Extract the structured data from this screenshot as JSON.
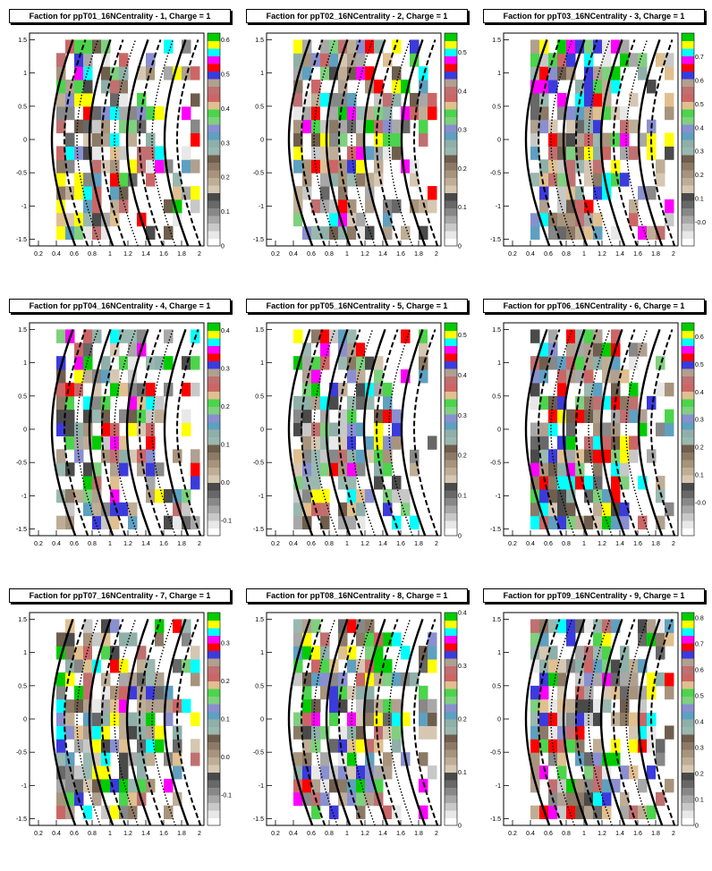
{
  "chart_data": [
    {
      "type": "heatmap",
      "title": "Faction for ppT01_16NCentrality - 1, Charge =    1",
      "xticks": [
        "0.2",
        "0.4",
        "0.6",
        "0.8",
        "1",
        "1.2",
        "1.4",
        "1.6",
        "1.8",
        "2"
      ],
      "yticks": [
        "1.5",
        "1",
        "0.5",
        "0",
        "-0.5",
        "-1",
        "-1.5"
      ],
      "zticks": [
        "0",
        "0.1",
        "0.2",
        "0.3",
        "0.4",
        "0.5",
        "0.6"
      ],
      "xlim": [
        0.1,
        2.05
      ],
      "ylim": [
        -1.6,
        1.6
      ],
      "zlim": [
        0,
        0.62
      ]
    },
    {
      "type": "heatmap",
      "title": "Faction for ppT02_16NCentrality - 2, Charge =    1",
      "xticks": [
        "0.2",
        "0.4",
        "0.6",
        "0.8",
        "1",
        "1.2",
        "1.4",
        "1.6",
        "1.8",
        "2"
      ],
      "yticks": [
        "1.5",
        "1",
        "0.5",
        "0",
        "-0.5",
        "-1",
        "-1.5"
      ],
      "zticks": [
        "0",
        "0.1",
        "0.2",
        "0.3",
        "0.4",
        "0.5"
      ],
      "xlim": [
        0.1,
        2.05
      ],
      "ylim": [
        -1.6,
        1.6
      ],
      "zlim": [
        0,
        0.55
      ]
    },
    {
      "type": "heatmap",
      "title": "Faction for ppT03_16NCentrality - 3, Charge =    1",
      "xticks": [
        "0.2",
        "0.4",
        "0.6",
        "0.8",
        "1",
        "1.2",
        "1.4",
        "1.6",
        "1.8",
        "2"
      ],
      "yticks": [
        "1.5",
        "1",
        "0.5",
        "0",
        "-0.5",
        "-1",
        "-1.5"
      ],
      "zticks": [
        "-0.0",
        "0.1",
        "0.2",
        "0.3",
        "0.4",
        "0.5",
        "0.6",
        "0.7"
      ],
      "xlim": [
        0.1,
        2.05
      ],
      "ylim": [
        -1.6,
        1.6
      ],
      "zlim": [
        -0.1,
        0.8
      ]
    },
    {
      "type": "heatmap",
      "title": "Faction for ppT04_16NCentrality - 4, Charge =    1",
      "xticks": [
        "0.2",
        "0.4",
        "0.6",
        "0.8",
        "1",
        "1.2",
        "1.4",
        "1.6",
        "1.8",
        "2"
      ],
      "yticks": [
        "1.5",
        "1",
        "0.5",
        "0",
        "-0.5",
        "-1",
        "-1.5"
      ],
      "zticks": [
        "-0.1",
        "0.0",
        "0.1",
        "0.2",
        "0.3",
        "0.4"
      ],
      "xlim": [
        0.1,
        2.05
      ],
      "ylim": [
        -1.6,
        1.6
      ],
      "zlim": [
        -0.14,
        0.42
      ]
    },
    {
      "type": "heatmap",
      "title": "Faction for ppT05_16NCentrality - 5, Charge =    1",
      "xticks": [
        "0.2",
        "0.4",
        "0.6",
        "0.8",
        "1",
        "1.2",
        "1.4",
        "1.6",
        "1.8",
        "2"
      ],
      "yticks": [
        "1.5",
        "1",
        "0.5",
        "0",
        "-0.5",
        "-1",
        "-1.5"
      ],
      "zticks": [
        "0",
        "0.1",
        "0.2",
        "0.3",
        "0.4",
        "0.5"
      ],
      "xlim": [
        0.1,
        2.05
      ],
      "ylim": [
        -1.6,
        1.6
      ],
      "zlim": [
        0,
        0.53
      ]
    },
    {
      "type": "heatmap",
      "title": "Faction for ppT06_16NCentrality - 6, Charge =    1",
      "xticks": [
        "0.2",
        "0.4",
        "0.6",
        "0.8",
        "1",
        "1.2",
        "1.4",
        "1.6",
        "1.8",
        "2"
      ],
      "yticks": [
        "1.5",
        "1",
        "0.5",
        "0",
        "-0.5",
        "-1",
        "-1.5"
      ],
      "zticks": [
        "-0.0",
        "0.1",
        "0.2",
        "0.3",
        "0.4",
        "0.5",
        "0.6"
      ],
      "xlim": [
        0.1,
        2.05
      ],
      "ylim": [
        -1.6,
        1.6
      ],
      "zlim": [
        -0.12,
        0.65
      ]
    },
    {
      "type": "heatmap",
      "title": "Faction for ppT07_16NCentrality - 7, Charge =    1",
      "xticks": [
        "0.2",
        "0.4",
        "0.6",
        "0.8",
        "1",
        "1.2",
        "1.4",
        "1.6",
        "1.8",
        "2"
      ],
      "yticks": [
        "1.5",
        "1",
        "0.5",
        "0",
        "-0.5",
        "-1",
        "-1.5"
      ],
      "zticks": [
        "-0.1",
        "0.0",
        "0.1",
        "0.2",
        "0.3"
      ],
      "xlim": [
        0.1,
        2.05
      ],
      "ylim": [
        -1.6,
        1.6
      ],
      "zlim": [
        -0.18,
        0.38
      ]
    },
    {
      "type": "heatmap",
      "title": "Faction for ppT08_16NCentrality - 8, Charge =    1",
      "xticks": [
        "0.2",
        "0.4",
        "0.6",
        "0.8",
        "1",
        "1.2",
        "1.4",
        "1.6",
        "1.8",
        "2"
      ],
      "yticks": [
        "1.5",
        "1",
        "0.5",
        "0",
        "-0.5",
        "-1",
        "-1.5"
      ],
      "zticks": [
        "0",
        "0.1",
        "0.2",
        "0.3",
        "0.4"
      ],
      "xlim": [
        0.1,
        2.05
      ],
      "ylim": [
        -1.6,
        1.6
      ],
      "zlim": [
        0,
        0.4
      ]
    },
    {
      "type": "heatmap",
      "title": "Faction for ppT09_16NCentrality - 9, Charge =    1",
      "xticks": [
        "0.2",
        "0.4",
        "0.6",
        "0.8",
        "1",
        "1.2",
        "1.4",
        "1.6",
        "1.8",
        "2"
      ],
      "yticks": [
        "1.5",
        "1",
        "0.5",
        "0",
        "-0.5",
        "-1",
        "-1.5"
      ],
      "zticks": [
        "0",
        "0.1",
        "0.2",
        "0.3",
        "0.4",
        "0.5",
        "0.6",
        "0.7",
        "0.8"
      ],
      "xlim": [
        0.1,
        2.05
      ],
      "ylim": [
        -1.6,
        1.6
      ],
      "zlim": [
        0,
        0.82
      ]
    }
  ]
}
